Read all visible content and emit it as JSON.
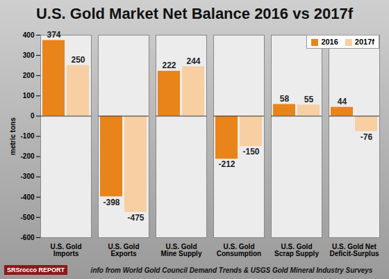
{
  "chart_data": {
    "type": "bar",
    "title": "U.S. Gold Market Net Balance 2016 vs 2017f",
    "y_label": "metric tons",
    "categories": [
      "U.S. Gold\nImports",
      "U.S. Gold\nExports",
      "U.S. Gold\nMine Supply",
      "U.S. Gold\nConsumption",
      "U.S. Gold\nScrap Supply",
      "U.S. Gold Net\nDeficit-Surplus"
    ],
    "series": [
      {
        "name": "2016",
        "color": "#e8841a",
        "values": [
          374,
          -398,
          222,
          -212,
          58,
          44
        ]
      },
      {
        "name": "2017f",
        "color": "#f7cfa3",
        "values": [
          250,
          -475,
          244,
          -150,
          55,
          -76
        ]
      }
    ],
    "ylim": [
      -600,
      400
    ],
    "yticks": [
      -600,
      -500,
      -400,
      -300,
      -200,
      -100,
      0,
      100,
      200,
      300,
      400
    ],
    "grid": true,
    "legend": "top-right",
    "data_labels": true,
    "caption": "info from World Gold Council Demand Trends & USGS Gold Mineral Industry Surveys",
    "logo": "SRSrocco REPORT"
  }
}
